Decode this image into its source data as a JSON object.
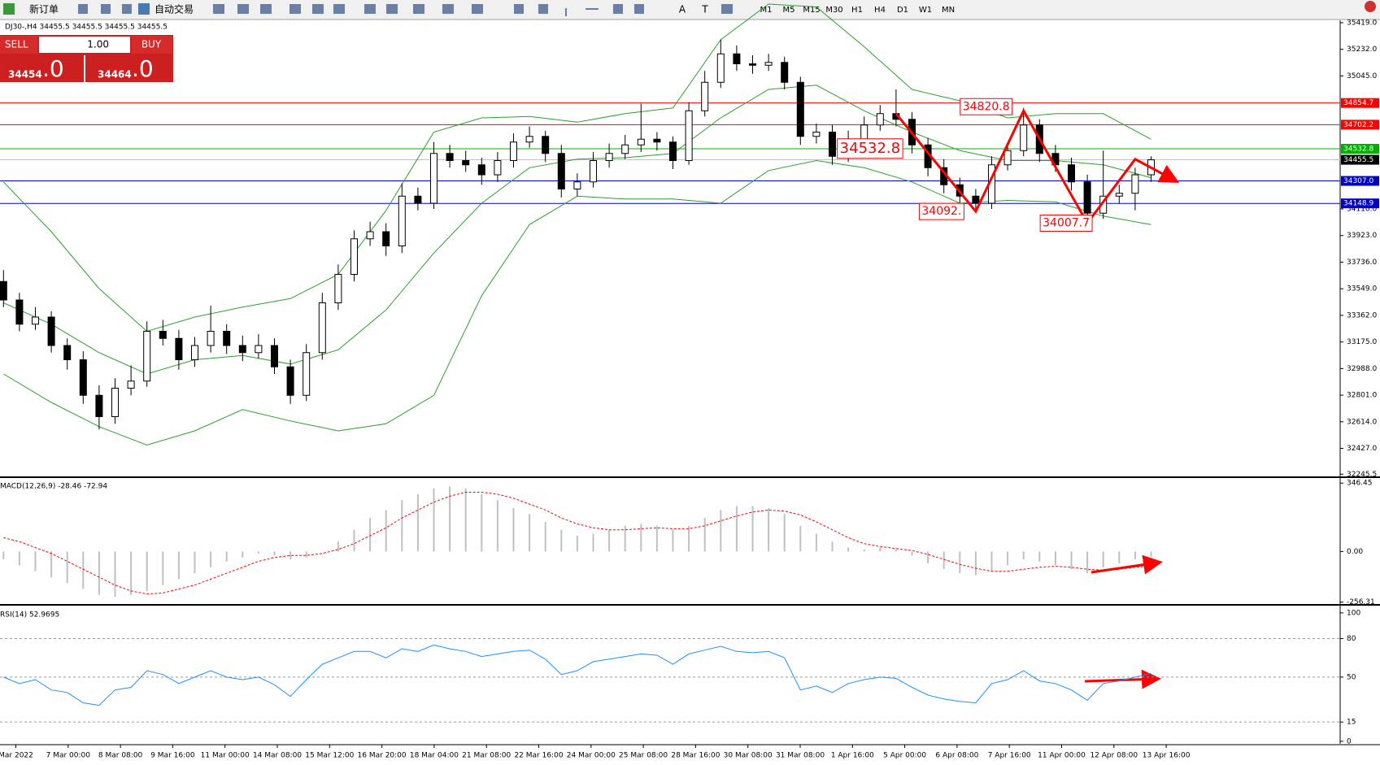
{
  "toolbar": {
    "buttons": [
      "新订单",
      "自动交易"
    ],
    "tools": [
      "A",
      "T"
    ],
    "timeframes": [
      "M1",
      "M5",
      "M15",
      "M30",
      "H1",
      "H4",
      "D1",
      "W1",
      "MN"
    ]
  },
  "trade_panel": {
    "sell": "SELL",
    "buy": "BUY",
    "lot": "1.00",
    "sell_price": "34454",
    "sell_fraction": ".0",
    "buy_price": "34464",
    "buy_fraction": ".0"
  },
  "x_axis": {
    "labels": [
      "Mar 2022",
      "7 Mar 00:00",
      "8 Mar 08:00",
      "9 Mar 16:00",
      "11 Mar 00:00",
      "14 Mar 08:00",
      "15 Mar 12:00",
      "16 Mar 20:00",
      "18 Mar 04:00",
      "21 Mar 08:00",
      "22 Mar 16:00",
      "24 Mar 00:00",
      "25 Mar 08:00",
      "28 Mar 16:00",
      "30 Mar 08:00",
      "31 Mar 08:00",
      "1 Apr 16:00",
      "5 Apr 00:00",
      "6 Apr 08:00",
      "7 Apr 16:00",
      "11 Apr 00:00",
      "12 Apr 08:00",
      "13 Apr 16:00"
    ]
  },
  "chart_data": [
    {
      "type": "candlestick",
      "title": "DJ30-,H4  34455.5 34455.5 34455.5 34455.5",
      "ylim": [
        32230,
        35430
      ],
      "yticks": [
        {
          "value": 35419,
          "label": "35419.0"
        },
        {
          "value": 35232,
          "label": "35232.0"
        },
        {
          "value": 35045,
          "label": "35045.0"
        },
        {
          "value": 34110,
          "label": "34110.0"
        },
        {
          "value": 33923,
          "label": "33923.0"
        },
        {
          "value": 33736,
          "label": "33736.0"
        },
        {
          "value": 33549,
          "label": "33549.0"
        },
        {
          "value": 33362,
          "label": "33362.0"
        },
        {
          "value": 33175,
          "label": "33175.0"
        },
        {
          "value": 32988,
          "label": "32988.0"
        },
        {
          "value": 32801,
          "label": "32801.0"
        },
        {
          "value": 32614,
          "label": "32614.0"
        },
        {
          "value": 32427,
          "label": "32427.0"
        },
        {
          "value": 32245.5,
          "label": "32245.5"
        }
      ],
      "ohlc": [
        [
          33600,
          33680,
          33420,
          33470
        ],
        [
          33470,
          33520,
          33250,
          33300
        ],
        [
          33300,
          33420,
          33260,
          33350
        ],
        [
          33350,
          33390,
          33100,
          33150
        ],
        [
          33150,
          33200,
          32980,
          33050
        ],
        [
          33050,
          33110,
          32740,
          32800
        ],
        [
          32800,
          32870,
          32560,
          32650
        ],
        [
          32650,
          32920,
          32600,
          32850
        ],
        [
          32850,
          33010,
          32800,
          32900
        ],
        [
          32900,
          33320,
          32860,
          33250
        ],
        [
          33250,
          33330,
          33150,
          33200
        ],
        [
          33200,
          33260,
          32980,
          33050
        ],
        [
          33050,
          33210,
          33000,
          33150
        ],
        [
          33150,
          33430,
          33100,
          33250
        ],
        [
          33250,
          33300,
          33090,
          33150
        ],
        [
          33150,
          33220,
          33040,
          33100
        ],
        [
          33100,
          33230,
          33060,
          33150
        ],
        [
          33150,
          33200,
          32950,
          33000
        ],
        [
          33000,
          33050,
          32740,
          32800
        ],
        [
          32800,
          33160,
          32760,
          33100
        ],
        [
          33100,
          33520,
          33050,
          33450
        ],
        [
          33450,
          33720,
          33400,
          33650
        ],
        [
          33650,
          33960,
          33600,
          33900
        ],
        [
          33900,
          34020,
          33850,
          33950
        ],
        [
          33950,
          34010,
          33780,
          33850
        ],
        [
          33850,
          34290,
          33800,
          34200
        ],
        [
          34200,
          34260,
          34100,
          34150
        ],
        [
          34150,
          34580,
          34110,
          34500
        ],
        [
          34500,
          34560,
          34400,
          34450
        ],
        [
          34450,
          34520,
          34370,
          34420
        ],
        [
          34420,
          34470,
          34280,
          34350
        ],
        [
          34350,
          34510,
          34300,
          34450
        ],
        [
          34450,
          34640,
          34400,
          34580
        ],
        [
          34580,
          34690,
          34540,
          34620
        ],
        [
          34620,
          34660,
          34440,
          34500
        ],
        [
          34500,
          34560,
          34190,
          34250
        ],
        [
          34250,
          34360,
          34200,
          34300
        ],
        [
          34300,
          34510,
          34260,
          34450
        ],
        [
          34450,
          34570,
          34400,
          34500
        ],
        [
          34500,
          34630,
          34460,
          34560
        ],
        [
          34560,
          34850,
          34510,
          34600
        ],
        [
          34600,
          34650,
          34520,
          34580
        ],
        [
          34580,
          34620,
          34390,
          34450
        ],
        [
          34450,
          34860,
          34420,
          34800
        ],
        [
          34800,
          35080,
          34760,
          35000
        ],
        [
          35000,
          35300,
          34960,
          35200
        ],
        [
          35200,
          35260,
          35080,
          35130
        ],
        [
          35130,
          35190,
          35060,
          35120
        ],
        [
          35120,
          35200,
          35080,
          35140
        ],
        [
          35140,
          35180,
          34950,
          35000
        ],
        [
          35000,
          35040,
          34560,
          34620
        ],
        [
          34620,
          34710,
          34570,
          34650
        ],
        [
          34650,
          34700,
          34420,
          34480
        ],
        [
          34480,
          34660,
          34440,
          34600
        ],
        [
          34600,
          34760,
          34560,
          34700
        ],
        [
          34700,
          34840,
          34660,
          34780
        ],
        [
          34780,
          34950,
          34690,
          34740
        ],
        [
          34740,
          34790,
          34500,
          34560
        ],
        [
          34560,
          34610,
          34340,
          34400
        ],
        [
          34400,
          34460,
          34220,
          34280
        ],
        [
          34280,
          34330,
          34140,
          34200
        ],
        [
          34200,
          34250,
          34090,
          34150
        ],
        [
          34150,
          34480,
          34110,
          34420
        ],
        [
          34420,
          34580,
          34380,
          34520
        ],
        [
          34520,
          34820.8,
          34480,
          34700
        ],
        [
          34700,
          34740,
          34440,
          34500
        ],
        [
          34500,
          34560,
          34370,
          34420
        ],
        [
          34420,
          34470,
          34240,
          34300
        ],
        [
          34300,
          34350,
          34007.7,
          34080
        ],
        [
          34080,
          34520,
          34040,
          34200
        ],
        [
          34200,
          34280,
          34150,
          34220
        ],
        [
          34220,
          34400,
          34100,
          34350
        ],
        [
          34350,
          34480,
          34300,
          34455.5
        ]
      ],
      "bands": {
        "color": "#2ca02c",
        "x": [
          0,
          3,
          6,
          9,
          12,
          15,
          18,
          21,
          24,
          27,
          30,
          33,
          36,
          39,
          42,
          45,
          48,
          51,
          54,
          57,
          60,
          63,
          66,
          69,
          72
        ],
        "upper": [
          34300,
          33950,
          33550,
          33250,
          33350,
          33420,
          33480,
          33650,
          34100,
          34650,
          34750,
          34760,
          34720,
          34780,
          34820,
          35300,
          35550,
          35530,
          35250,
          34950,
          34870,
          34750,
          34780,
          34780,
          34600
        ],
        "middle": [
          33450,
          33300,
          33100,
          32950,
          33050,
          33080,
          33020,
          33120,
          33400,
          33800,
          34150,
          34400,
          34460,
          34470,
          34500,
          34750,
          34950,
          34980,
          34800,
          34650,
          34520,
          34450,
          34450,
          34420,
          34330
        ],
        "lower": [
          32950,
          32750,
          32580,
          32450,
          32550,
          32700,
          32620,
          32550,
          32600,
          32800,
          33500,
          34000,
          34200,
          34180,
          34180,
          34150,
          34380,
          34450,
          34400,
          34300,
          34150,
          34170,
          34160,
          34060,
          34000
        ]
      },
      "levels": [
        {
          "value": 34854.7,
          "label": "34854.7",
          "color": "#ff0000",
          "tag": "#ff0000"
        },
        {
          "value": 34702.2,
          "label": "34702.2",
          "color": "#ff0000",
          "tag": "#ff0000"
        },
        {
          "value": 34532.8,
          "label": "34532.8",
          "color": "#00b000",
          "tag": "#00b000"
        },
        {
          "value": 34455.5,
          "label": "34455.5",
          "color": "#c0c0c0",
          "tag": "#000000"
        },
        {
          "value": 34307,
          "label": "34307.0",
          "color": "#0000cc",
          "tag": "#0000cc"
        },
        {
          "value": 34148.9,
          "label": "34148.9",
          "color": "#0000cc",
          "tag": "#0000cc"
        }
      ],
      "zigzag": {
        "color": "#ff0000",
        "x": [
          56,
          61,
          64,
          68,
          71,
          73.5
        ],
        "y": [
          34780,
          34092,
          34800,
          34010,
          34460,
          34310
        ]
      },
      "annotations": [
        "34532.8",
        "34092.",
        "34820.8",
        "34007.7"
      ]
    },
    {
      "type": "macd",
      "title": "MACD(12,26,9) -28.46 -72.94",
      "ylim": [
        -262,
        368
      ],
      "yticks": [
        346.45,
        {
          "value": 0,
          "label": "0.00"
        },
        -256.31
      ],
      "series": [
        {
          "name": "histogram",
          "color": "#c0c0c0",
          "values": [
            -40,
            -70,
            -100,
            -130,
            -160,
            -190,
            -220,
            -230,
            -220,
            -200,
            -170,
            -140,
            -110,
            -80,
            -50,
            -30,
            -10,
            -20,
            -40,
            -30,
            0,
            50,
            110,
            170,
            210,
            260,
            290,
            320,
            330,
            320,
            290,
            260,
            220,
            190,
            150,
            110,
            80,
            90,
            110,
            130,
            140,
            130,
            110,
            130,
            170,
            210,
            230,
            230,
            220,
            190,
            130,
            90,
            50,
            20,
            10,
            20,
            10,
            -20,
            -60,
            -90,
            -110,
            -120,
            -100,
            -70,
            -40,
            -50,
            -70,
            -90,
            -110,
            -80,
            -60,
            -40,
            -28.46
          ]
        },
        {
          "name": "signal",
          "color": "#ff0000",
          "values": [
            70,
            50,
            20,
            -10,
            -50,
            -90,
            -130,
            -170,
            -200,
            -215,
            -210,
            -190,
            -170,
            -140,
            -110,
            -80,
            -50,
            -30,
            -20,
            -20,
            -10,
            10,
            40,
            80,
            120,
            170,
            210,
            250,
            280,
            300,
            300,
            290,
            270,
            240,
            210,
            170,
            140,
            120,
            110,
            110,
            115,
            120,
            115,
            115,
            130,
            155,
            180,
            200,
            210,
            205,
            185,
            150,
            110,
            70,
            40,
            25,
            15,
            5,
            -15,
            -40,
            -65,
            -85,
            -100,
            -100,
            -90,
            -80,
            -75,
            -80,
            -90,
            -95,
            -90,
            -80,
            -72.94
          ]
        }
      ]
    },
    {
      "type": "line",
      "title": "RSI(14) 52.9695",
      "ylim": [
        -2,
        105
      ],
      "yticks": [
        100,
        80,
        50,
        15,
        0
      ],
      "levels": [
        80,
        50,
        15
      ],
      "series": [
        {
          "name": "RSI",
          "color": "#1e90ff",
          "values": [
            50,
            45,
            48,
            40,
            38,
            30,
            28,
            40,
            42,
            55,
            52,
            45,
            50,
            55,
            50,
            48,
            50,
            44,
            35,
            48,
            60,
            65,
            70,
            70,
            65,
            72,
            70,
            75,
            72,
            70,
            66,
            68,
            70,
            71,
            64,
            52,
            55,
            62,
            64,
            66,
            68,
            67,
            60,
            68,
            71,
            74,
            70,
            69,
            70,
            65,
            40,
            43,
            38,
            45,
            48,
            50,
            49,
            42,
            36,
            33,
            31,
            30,
            45,
            48,
            55,
            47,
            45,
            40,
            32,
            45,
            47,
            50,
            52.9695
          ]
        }
      ]
    }
  ]
}
